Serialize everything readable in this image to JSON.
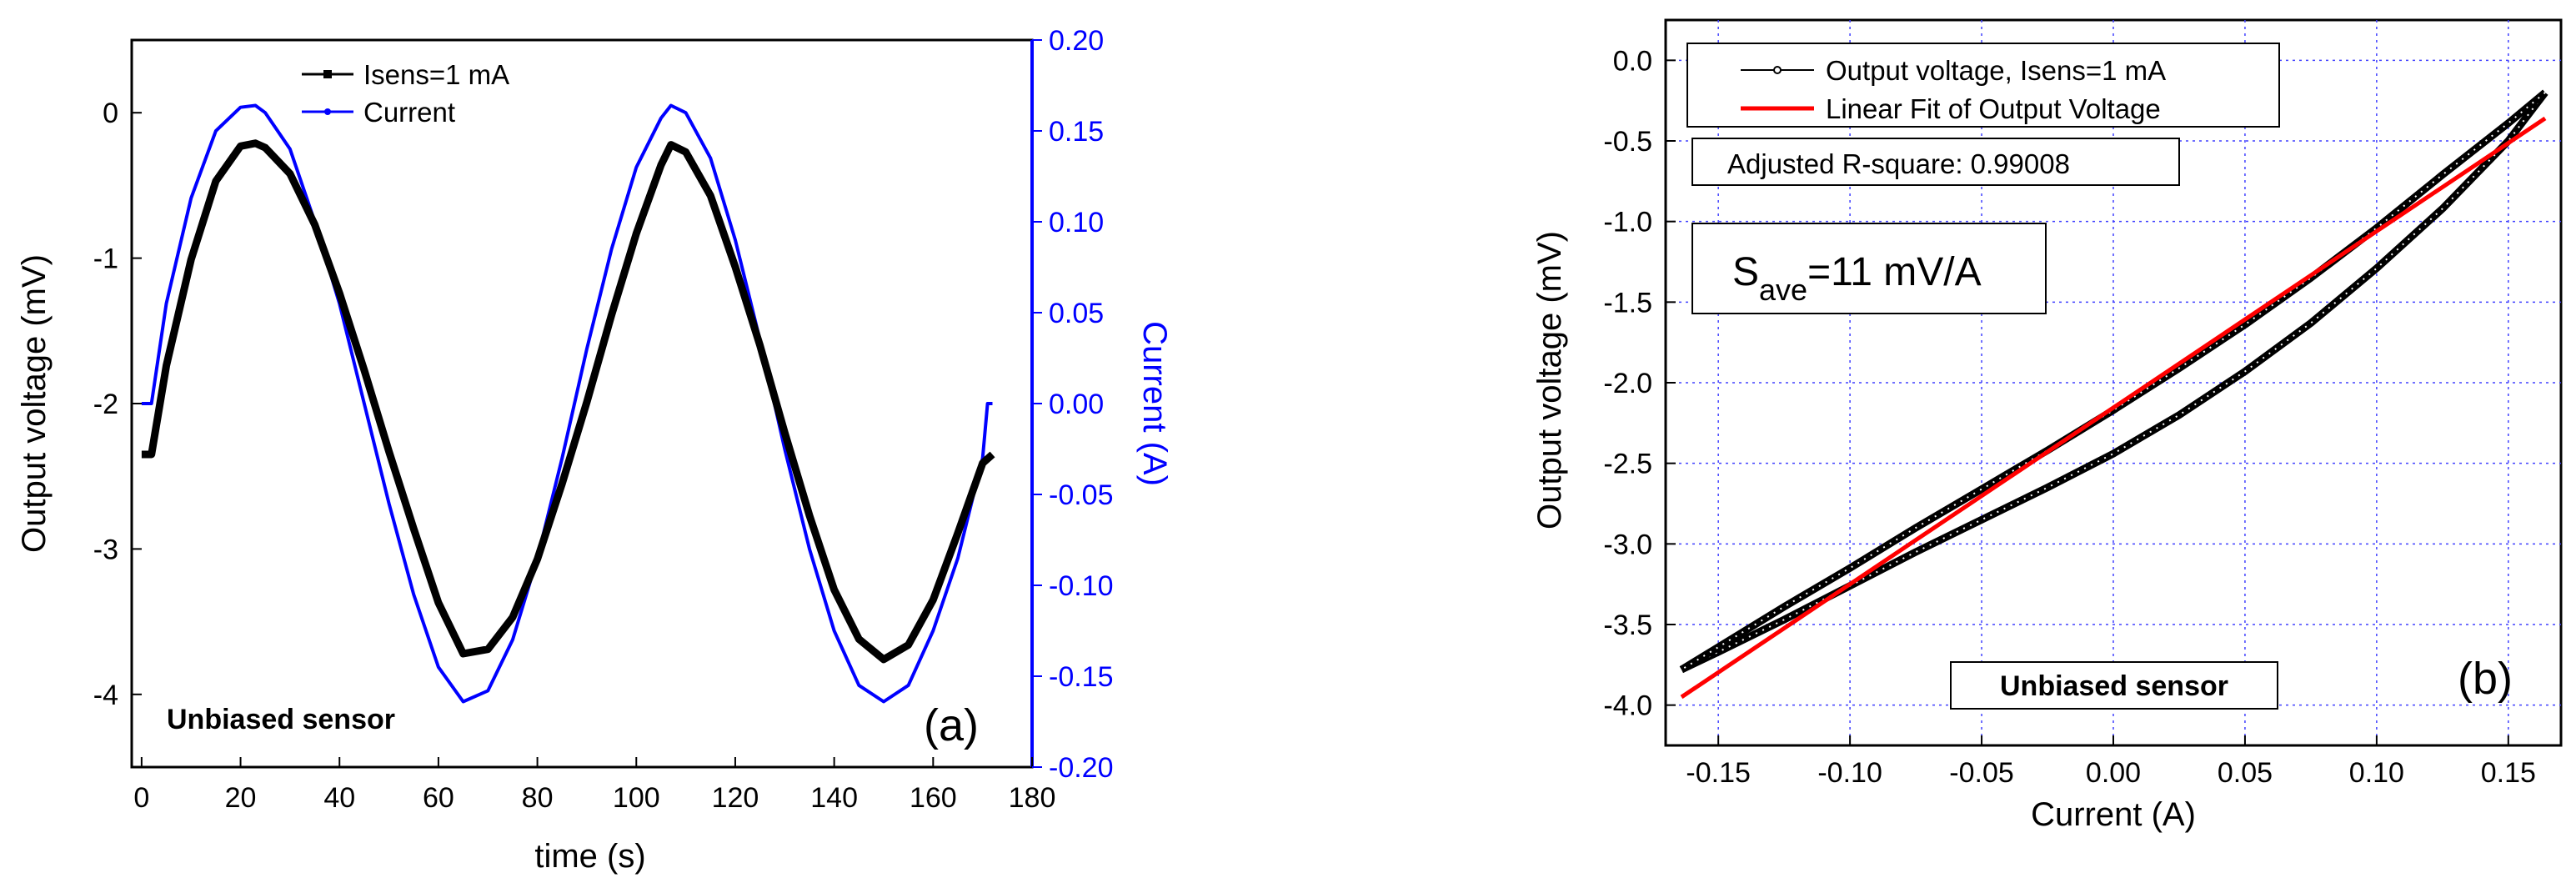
{
  "chart_data": [
    {
      "type": "line",
      "panel_label": "(a)",
      "xlabel": "time (s)",
      "ylabel_left": "Output voltage (mV)",
      "ylabel_right": "Current (A)",
      "xlim": [
        -2,
        180
      ],
      "ylim_left": [
        -4.5,
        0.5
      ],
      "ylim_right": [
        -0.2,
        0.2
      ],
      "x_ticks": [
        "0",
        "20",
        "40",
        "60",
        "80",
        "100",
        "120",
        "140",
        "160",
        "180"
      ],
      "y_left_ticks": [
        "0",
        "-1",
        "-2",
        "-3",
        "-4"
      ],
      "y_right_ticks": [
        "0.20",
        "0.15",
        "0.10",
        "0.05",
        "0.00",
        "-0.05",
        "-0.10",
        "-0.15",
        "-0.20"
      ],
      "annotation": "Unbiased sensor",
      "series": [
        {
          "name": "Isens=1 mA",
          "axis": "left",
          "color": "#000000",
          "x": [
            0,
            2,
            5,
            10,
            15,
            20,
            23,
            25,
            30,
            35,
            40,
            45,
            50,
            55,
            60,
            65,
            70,
            75,
            80,
            85,
            90,
            95,
            100,
            105,
            107,
            110,
            115,
            120,
            125,
            130,
            135,
            140,
            145,
            150,
            155,
            160,
            165,
            170,
            172
          ],
          "values": [
            -2.35,
            -2.35,
            -1.74,
            -1.01,
            -0.47,
            -0.23,
            -0.21,
            -0.24,
            -0.42,
            -0.77,
            -1.24,
            -1.77,
            -2.33,
            -2.86,
            -3.37,
            -3.72,
            -3.69,
            -3.47,
            -3.07,
            -2.55,
            -1.99,
            -1.39,
            -0.83,
            -0.36,
            -0.22,
            -0.27,
            -0.57,
            -1.06,
            -1.6,
            -2.2,
            -2.77,
            -3.28,
            -3.62,
            -3.76,
            -3.66,
            -3.35,
            -2.89,
            -2.41,
            -2.35
          ]
        },
        {
          "name": "Current",
          "axis": "right",
          "color": "#0000ff",
          "x": [
            0,
            2,
            5,
            10,
            15,
            20,
            23,
            25,
            30,
            35,
            40,
            45,
            50,
            55,
            60,
            65,
            70,
            75,
            80,
            85,
            90,
            95,
            100,
            105,
            107,
            110,
            115,
            120,
            125,
            130,
            135,
            140,
            145,
            150,
            155,
            160,
            165,
            170,
            171,
            172
          ],
          "values": [
            0.0,
            0.0,
            0.055,
            0.113,
            0.15,
            0.163,
            0.164,
            0.16,
            0.14,
            0.1,
            0.055,
            0.0,
            -0.055,
            -0.105,
            -0.145,
            -0.164,
            -0.158,
            -0.13,
            -0.085,
            -0.03,
            0.03,
            0.085,
            0.13,
            0.157,
            0.164,
            0.16,
            0.135,
            0.09,
            0.035,
            -0.025,
            -0.08,
            -0.125,
            -0.155,
            -0.164,
            -0.155,
            -0.125,
            -0.085,
            -0.03,
            0.0,
            0.0
          ]
        }
      ]
    },
    {
      "type": "scatter",
      "panel_label": "(b)",
      "xlabel": "Current (A)",
      "ylabel": "Output voltage (mV)",
      "xlim": [
        -0.17,
        0.17
      ],
      "ylim": [
        -4.25,
        0.25
      ],
      "grid": true,
      "x_ticks": [
        "-0.15",
        "-0.10",
        "-0.05",
        "0.00",
        "0.05",
        "0.10",
        "0.15"
      ],
      "y_ticks": [
        "0.0",
        "-0.5",
        "-1.0",
        "-1.5",
        "-2.0",
        "-2.5",
        "-3.0",
        "-3.5",
        "-4.0"
      ],
      "annotations": {
        "r_square": "Adjusted R-square: 0.99008",
        "sensitivity_main": "S",
        "sensitivity_sub": "ave",
        "sensitivity_value": "=11 mV/A",
        "sensor": "Unbiased sensor"
      },
      "series": [
        {
          "name": "Output voltage, Isens=1 mA",
          "color": "#000000",
          "marker": "open-circle",
          "branch_up": {
            "x": [
              -0.164,
              -0.15,
              -0.125,
              -0.1,
              -0.075,
              -0.05,
              -0.025,
              0.0,
              0.025,
              0.05,
              0.075,
              0.1,
              0.125,
              0.15,
              0.164
            ],
            "values": [
              -3.78,
              -3.67,
              -3.47,
              -3.26,
              -3.05,
              -2.85,
              -2.65,
              -2.44,
              -2.2,
              -1.93,
              -1.63,
              -1.29,
              -0.92,
              -0.5,
              -0.2
            ]
          },
          "branch_down": {
            "x": [
              0.164,
              0.15,
              0.125,
              0.1,
              0.075,
              0.05,
              0.025,
              0.0,
              -0.025,
              -0.05,
              -0.075,
              -0.1,
              -0.125,
              -0.15,
              -0.164
            ],
            "values": [
              -0.2,
              -0.39,
              -0.71,
              -1.04,
              -1.35,
              -1.64,
              -1.91,
              -2.17,
              -2.42,
              -2.66,
              -2.9,
              -3.15,
              -3.39,
              -3.64,
              -3.78
            ]
          }
        },
        {
          "name": "Linear Fit of Output Voltage",
          "color": "#ff0000",
          "x": [
            -0.164,
            0.164
          ],
          "values": [
            -3.95,
            -0.36
          ]
        }
      ]
    }
  ]
}
